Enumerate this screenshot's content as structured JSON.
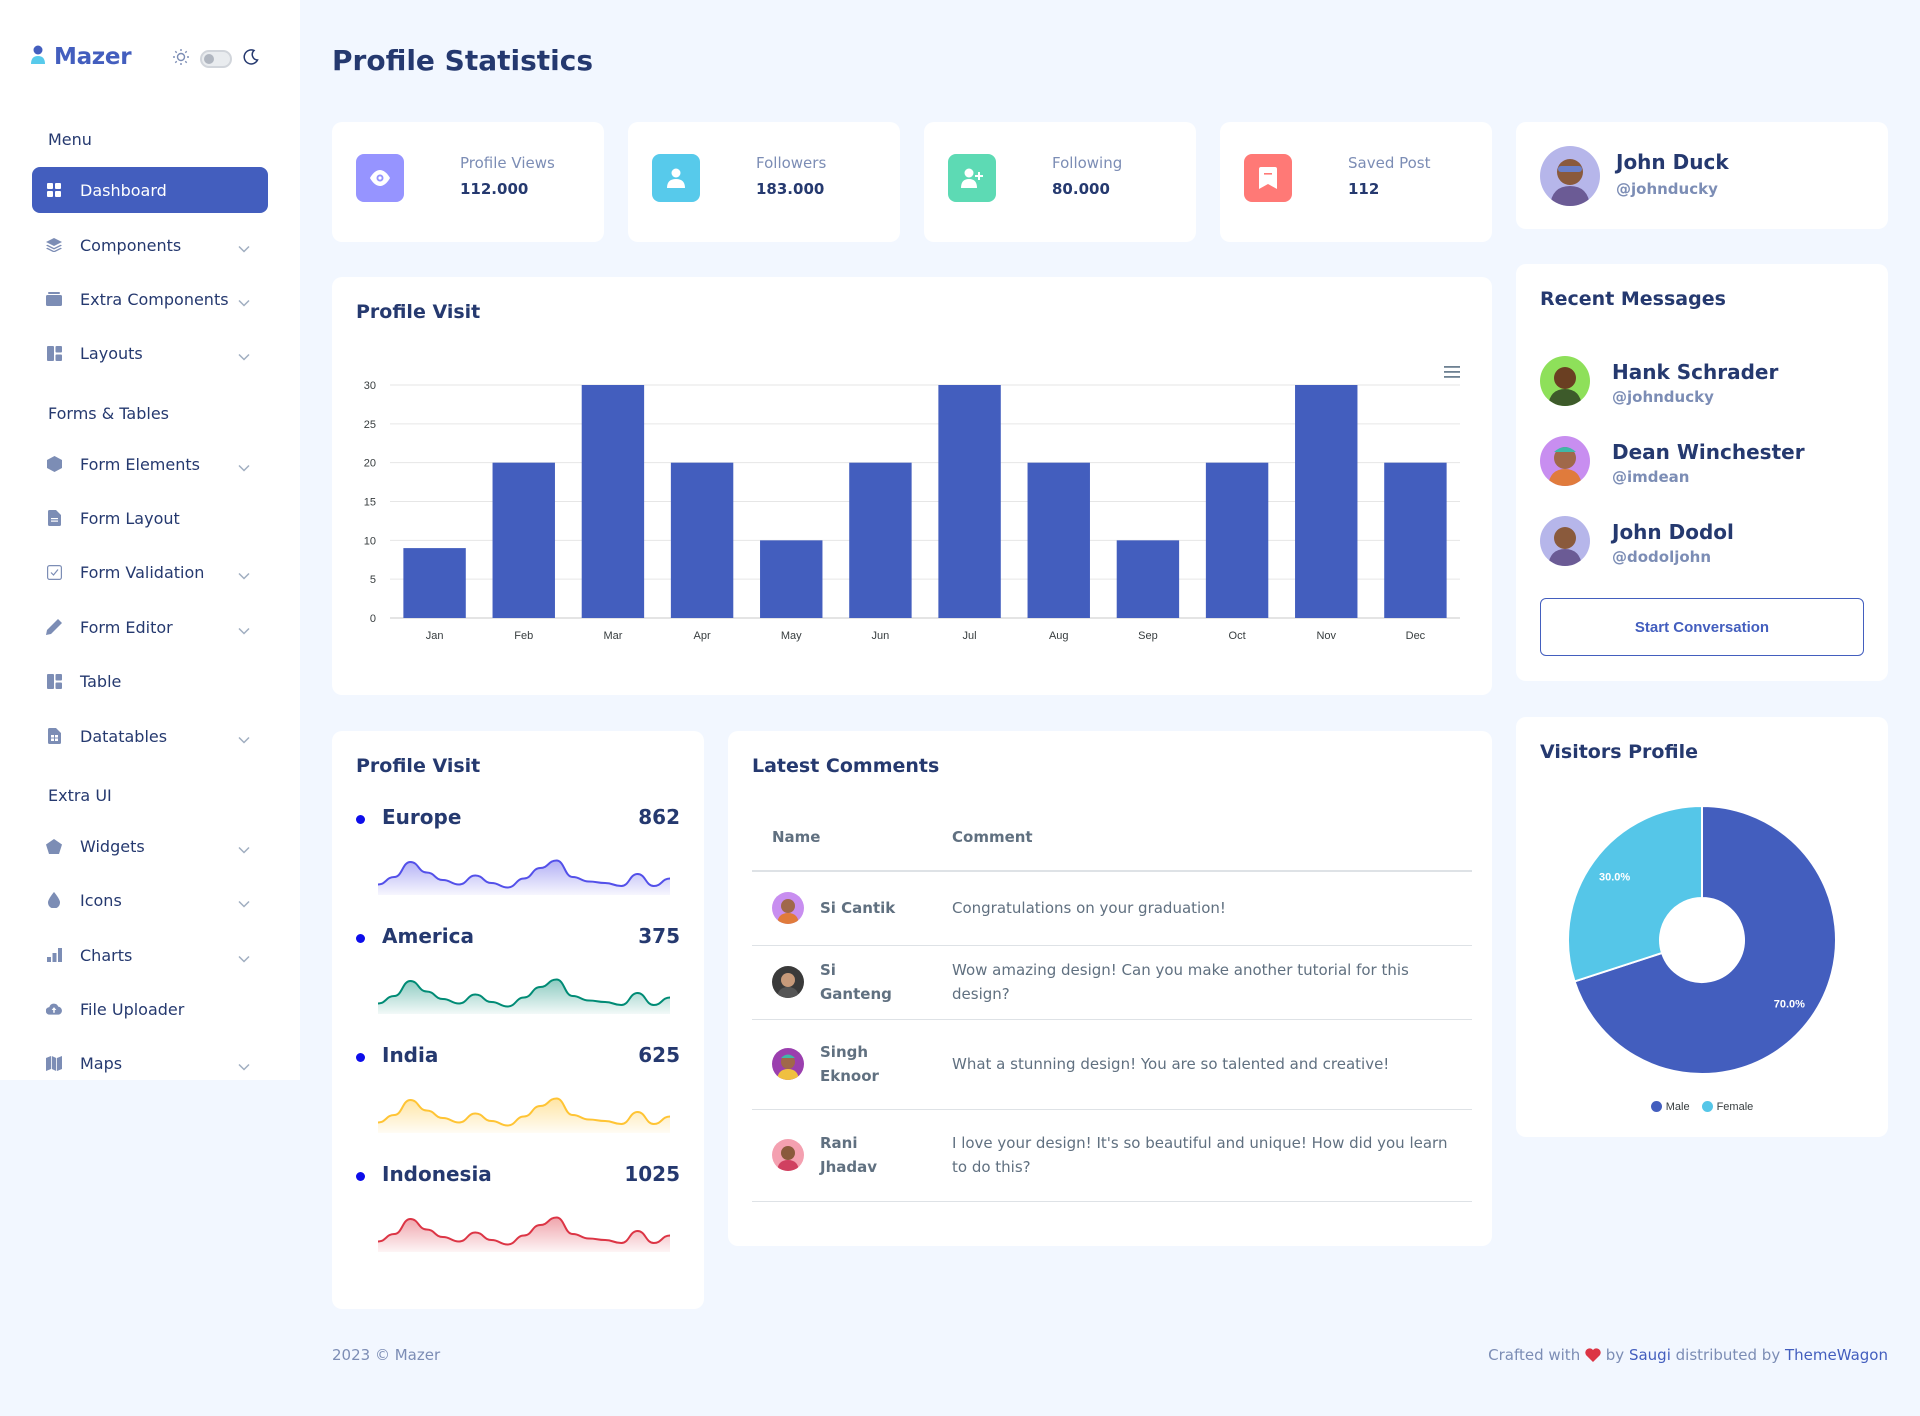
{
  "brand": {
    "name": "Mazer"
  },
  "sidebar": {
    "sections": [
      "Menu",
      "Forms & Tables",
      "Extra UI"
    ],
    "items": [
      {
        "label": "Dashboard",
        "icon": "grid-icon"
      },
      {
        "label": "Components",
        "icon": "stack-icon"
      },
      {
        "label": "Extra Components",
        "icon": "collection-icon"
      },
      {
        "label": "Layouts",
        "icon": "layout-icon"
      },
      {
        "label": "Form Elements",
        "icon": "hexagon-icon"
      },
      {
        "label": "Form Layout",
        "icon": "file-text-icon"
      },
      {
        "label": "Form Validation",
        "icon": "check-square-icon"
      },
      {
        "label": "Form Editor",
        "icon": "pen-icon"
      },
      {
        "label": "Table",
        "icon": "table-icon"
      },
      {
        "label": "Datatables",
        "icon": "spreadsheet-icon"
      },
      {
        "label": "Widgets",
        "icon": "pentagon-icon"
      },
      {
        "label": "Icons",
        "icon": "droplet-icon"
      },
      {
        "label": "Charts",
        "icon": "bar-chart-icon"
      },
      {
        "label": "File Uploader",
        "icon": "cloud-upload-icon"
      },
      {
        "label": "Maps",
        "icon": "map-icon"
      }
    ]
  },
  "page": {
    "title": "Profile Statistics"
  },
  "stats": [
    {
      "label": "Profile Views",
      "value": "112.000",
      "color": "#9694ff"
    },
    {
      "label": "Followers",
      "value": "183.000",
      "color": "#57caeb"
    },
    {
      "label": "Following",
      "value": "80.000",
      "color": "#5ddab4"
    },
    {
      "label": "Saved Post",
      "value": "112",
      "color": "#ff7976"
    }
  ],
  "profile": {
    "name": "John Duck",
    "handle": "@johnducky"
  },
  "profile_visit_chart": {
    "title": "Profile Visit"
  },
  "recent_messages": {
    "title": "Recent Messages",
    "items": [
      {
        "name": "Hank Schrader",
        "handle": "@johnducky"
      },
      {
        "name": "Dean Winchester",
        "handle": "@imdean"
      },
      {
        "name": "John Dodol",
        "handle": "@dodoljohn"
      }
    ],
    "button": "Start Conversation"
  },
  "region_visits": {
    "title": "Profile Visit",
    "regions": [
      {
        "name": "Europe",
        "value": "862",
        "color": "#5350e9"
      },
      {
        "name": "America",
        "value": "375",
        "color": "#008b75"
      },
      {
        "name": "India",
        "value": "625",
        "color": "#ffc434"
      },
      {
        "name": "Indonesia",
        "value": "1025",
        "color": "#dc3545"
      }
    ]
  },
  "latest_comments": {
    "title": "Latest Comments",
    "headers": {
      "name": "Name",
      "comment": "Comment"
    },
    "rows": [
      {
        "name": "Si Cantik",
        "comment": "Congratulations on your graduation!"
      },
      {
        "name": "Si Ganteng",
        "comment": "Wow amazing design! Can you make another tutorial for this design?"
      },
      {
        "name": "Singh Eknoor",
        "comment": "What a stunning design! You are so talented and creative!"
      },
      {
        "name": "Rani Jhadav",
        "comment": "I love your design! It's so beautiful and unique! How did you learn to do this?"
      }
    ]
  },
  "visitors_profile": {
    "title": "Visitors Profile"
  },
  "footer": {
    "left": "2023 © Mazer",
    "crafted": "Crafted with",
    "by": "by",
    "author": "Saugi",
    "distributed": "distributed by",
    "distributor": "ThemeWagon"
  },
  "chart_data": [
    {
      "type": "bar",
      "title": "Profile Visit",
      "categories": [
        "Jan",
        "Feb",
        "Mar",
        "Apr",
        "May",
        "Jun",
        "Jul",
        "Aug",
        "Sep",
        "Oct",
        "Nov",
        "Dec"
      ],
      "values": [
        9,
        20,
        30,
        20,
        10,
        20,
        30,
        20,
        10,
        20,
        30,
        20
      ],
      "ylim": [
        0,
        30
      ],
      "yticks": [
        0,
        5,
        10,
        15,
        20,
        25,
        30
      ],
      "color": "#435ebe",
      "grid": true
    },
    {
      "type": "pie",
      "title": "Visitors Profile",
      "labels": [
        "Male",
        "Female"
      ],
      "values": [
        70,
        30
      ],
      "value_labels": [
        "70.0%",
        "30.0%"
      ],
      "colors": [
        "#435ebe",
        "#55c6e8"
      ],
      "legend": "bottom"
    }
  ]
}
